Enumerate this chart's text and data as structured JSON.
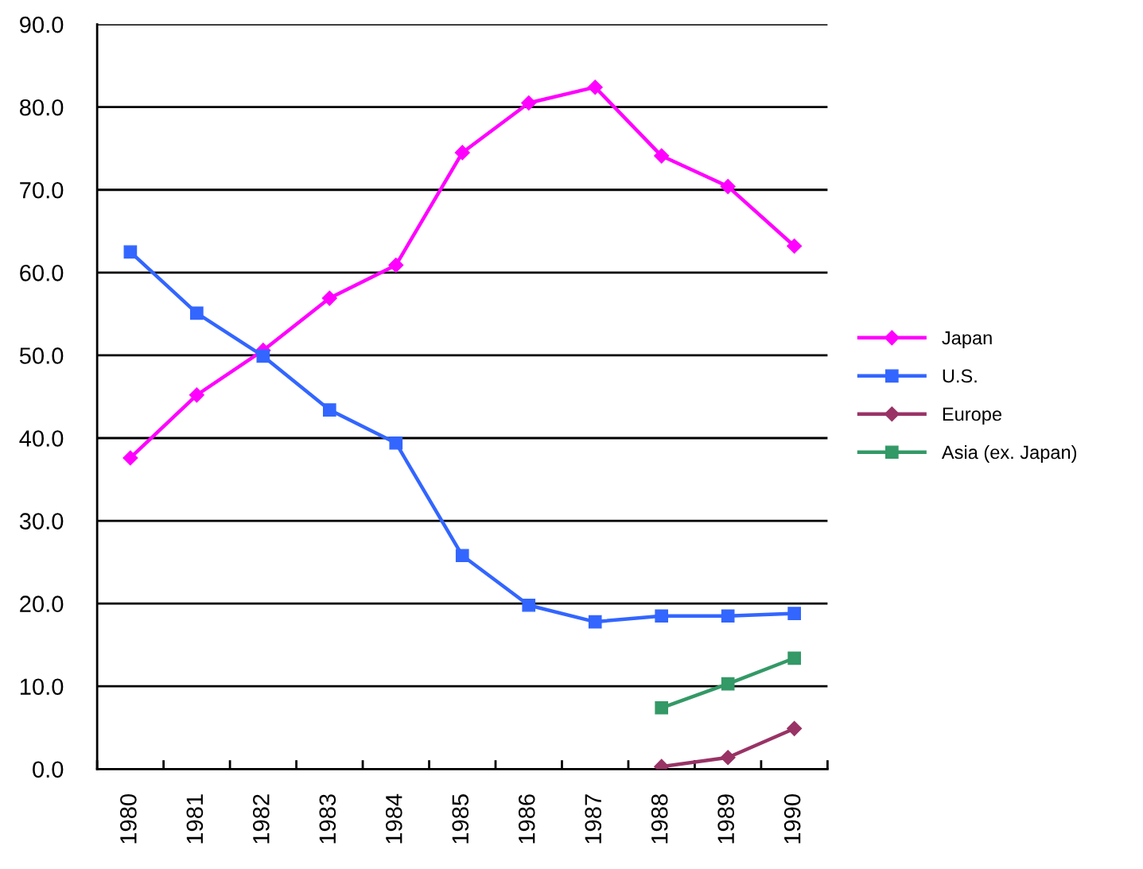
{
  "chart_data": {
    "type": "line",
    "categories": [
      "1980",
      "1981",
      "1982",
      "1983",
      "1984",
      "1985",
      "1986",
      "1987",
      "1988",
      "1989",
      "1990"
    ],
    "series": [
      {
        "name": "Japan",
        "color": "#ff00ff",
        "marker": "diamond",
        "values": [
          37.6,
          45.2,
          50.6,
          56.9,
          60.9,
          74.5,
          80.5,
          82.4,
          74.1,
          70.4,
          63.2
        ]
      },
      {
        "name": "U.S.",
        "color": "#3366ff",
        "marker": "square",
        "values": [
          62.5,
          55.1,
          49.9,
          43.4,
          39.4,
          25.8,
          19.8,
          17.8,
          18.5,
          18.5,
          18.8
        ]
      },
      {
        "name": "Europe",
        "color": "#993366",
        "marker": "diamond",
        "values": [
          null,
          null,
          null,
          null,
          null,
          null,
          null,
          null,
          0.3,
          1.4,
          4.9
        ]
      },
      {
        "name": "Asia (ex. Japan)",
        "color": "#339966",
        "marker": "square",
        "values": [
          null,
          null,
          null,
          null,
          null,
          null,
          null,
          null,
          7.4,
          10.3,
          13.4
        ]
      }
    ],
    "ylim": [
      0,
      90
    ],
    "yticks": [
      {
        "value": 0,
        "label": "0.0"
      },
      {
        "value": 10,
        "label": "10.0"
      },
      {
        "value": 20,
        "label": "20.0"
      },
      {
        "value": 30,
        "label": "30.0"
      },
      {
        "value": 40,
        "label": "40.0"
      },
      {
        "value": 50,
        "label": "50.0"
      },
      {
        "value": 60,
        "label": "60.0"
      },
      {
        "value": 70,
        "label": "70.0"
      },
      {
        "value": 80,
        "label": "80.0"
      },
      {
        "value": 90,
        "label": "90.0"
      }
    ],
    "grid": "y",
    "legend": "right",
    "line_style": "solid"
  }
}
